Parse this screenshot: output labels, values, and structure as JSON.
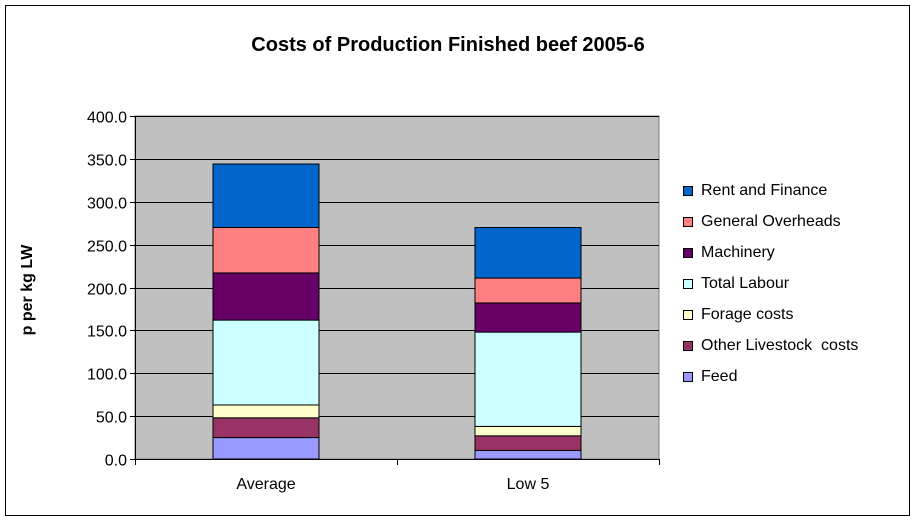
{
  "chart_data": {
    "type": "bar",
    "stacked": true,
    "title": "Costs of Production Finished beef 2005-6",
    "xlabel": "",
    "ylabel": "p per kg LW",
    "ylim": [
      0,
      400
    ],
    "yticks": [
      "0.0",
      "50.0",
      "100.0",
      "150.0",
      "200.0",
      "250.0",
      "300.0",
      "350.0",
      "400.0"
    ],
    "grid": true,
    "legend_position": "right",
    "categories": [
      "Average",
      "Low 5"
    ],
    "series": [
      {
        "name": "Feed",
        "color": "#9999ff",
        "values": [
          25,
          10
        ]
      },
      {
        "name": "Other Livestock  costs",
        "color": "#993366",
        "values": [
          23,
          17
        ]
      },
      {
        "name": "Forage costs",
        "color": "#ffffcc",
        "values": [
          15,
          11
        ]
      },
      {
        "name": "Total Labour",
        "color": "#ccffff",
        "values": [
          99,
          110
        ]
      },
      {
        "name": "Machinery",
        "color": "#660066",
        "values": [
          55,
          34
        ]
      },
      {
        "name": "General Overheads",
        "color": "#ff8080",
        "values": [
          53,
          29
        ]
      },
      {
        "name": "Rent and Finance",
        "color": "#0066cc",
        "values": [
          74,
          59
        ]
      }
    ],
    "plot_background": "#c0c0c0"
  }
}
